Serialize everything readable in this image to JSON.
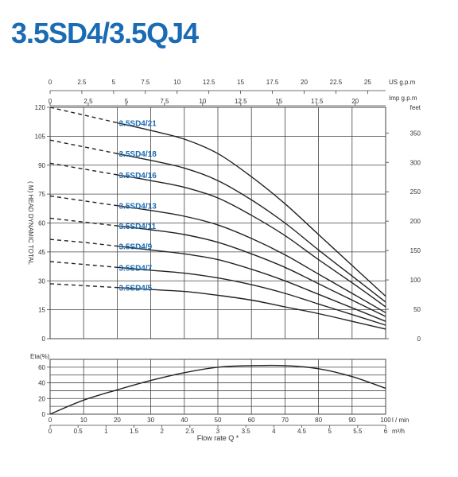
{
  "title": "3.5SD4/3.5QJ4",
  "colors": {
    "title": "#1a6bb3",
    "curve_label": "#1a6bb3",
    "line": "#222222",
    "grid": "#444444"
  },
  "chart_data": [
    {
      "type": "line",
      "subtitle": "Head curves",
      "x_top_unit_1": "US g.p.m",
      "x_top_ticks_1": [
        0,
        2.5,
        5,
        7.5,
        10,
        12.5,
        15,
        17.5,
        20,
        22.5,
        25
      ],
      "x_top_unit_2": "Imp g.p.m",
      "x_top_ticks_2": [
        0,
        2.5,
        5,
        7.5,
        10,
        12.5,
        15,
        17.5,
        20
      ],
      "ylabel": "( M) HEAD DYNAMIC TOTAL",
      "ylim": [
        0,
        120
      ],
      "yticks": [
        0,
        15,
        30,
        45,
        60,
        75,
        90,
        105,
        120
      ],
      "y2label": "feet",
      "y2ticks": [
        0,
        50,
        100,
        150,
        200,
        250,
        300,
        350
      ],
      "xlim_lpm": [
        0,
        100
      ],
      "grid": true,
      "x_lpm": [
        0,
        10,
        20,
        30,
        40,
        50,
        60,
        70,
        80,
        90,
        100
      ],
      "dashed_until_lpm": 20,
      "series": [
        {
          "name": "3.5SD4/21",
          "values": [
            120,
            116,
            112,
            108,
            103.5,
            96,
            84,
            70,
            54,
            38,
            22
          ]
        },
        {
          "name": "3.5SD4/18",
          "values": [
            103,
            99.5,
            96,
            92.5,
            88.5,
            82,
            72,
            60,
            46,
            32.5,
            19
          ]
        },
        {
          "name": "3.5SD4/16",
          "values": [
            91,
            88,
            85,
            82,
            78.5,
            73,
            64,
            53.5,
            41,
            29,
            16.5
          ]
        },
        {
          "name": "3.5SD4/13",
          "values": [
            74,
            71.5,
            69,
            66.5,
            63.5,
            59,
            52,
            43.5,
            33.5,
            23.5,
            13.5
          ]
        },
        {
          "name": "3.5SD4/11",
          "values": [
            62.5,
            60.5,
            58.5,
            56.5,
            54,
            50,
            44,
            37,
            28.5,
            20,
            11.5
          ]
        },
        {
          "name": "3.5SD4/9",
          "values": [
            51.5,
            50,
            48,
            46,
            44,
            41,
            36,
            30,
            23,
            16,
            9
          ]
        },
        {
          "name": "3.5SD4/7",
          "values": [
            40,
            38.5,
            37,
            35.5,
            34,
            31.5,
            28,
            23.5,
            18,
            12.5,
            7
          ]
        },
        {
          "name": "3.5SD4/5",
          "values": [
            28.5,
            27.5,
            26.5,
            25.5,
            24.5,
            22.5,
            20,
            16.5,
            13,
            9,
            5
          ]
        }
      ]
    },
    {
      "type": "line",
      "subtitle": "Efficiency curve",
      "ylabel": "Eta(%)",
      "ylim": [
        0,
        70
      ],
      "yticks": [
        0,
        20,
        40,
        60
      ],
      "xlabel": "Flow rate Q *",
      "x_unit_1": "l / min",
      "xticks_1": [
        0,
        10,
        20,
        30,
        40,
        50,
        60,
        70,
        80,
        90,
        100
      ],
      "x_unit_2": "m³/h",
      "xticks_2": [
        "0",
        "0.5",
        "1",
        "1.5",
        "2",
        "2.5",
        "3",
        "3.5",
        "4",
        "4.5",
        "5",
        "5.5",
        "6"
      ],
      "grid": true,
      "x": [
        0,
        10,
        20,
        30,
        40,
        50,
        60,
        70,
        80,
        90,
        100
      ],
      "values": [
        0,
        18,
        31,
        43,
        53,
        60,
        62,
        62,
        58,
        48,
        33
      ]
    }
  ]
}
